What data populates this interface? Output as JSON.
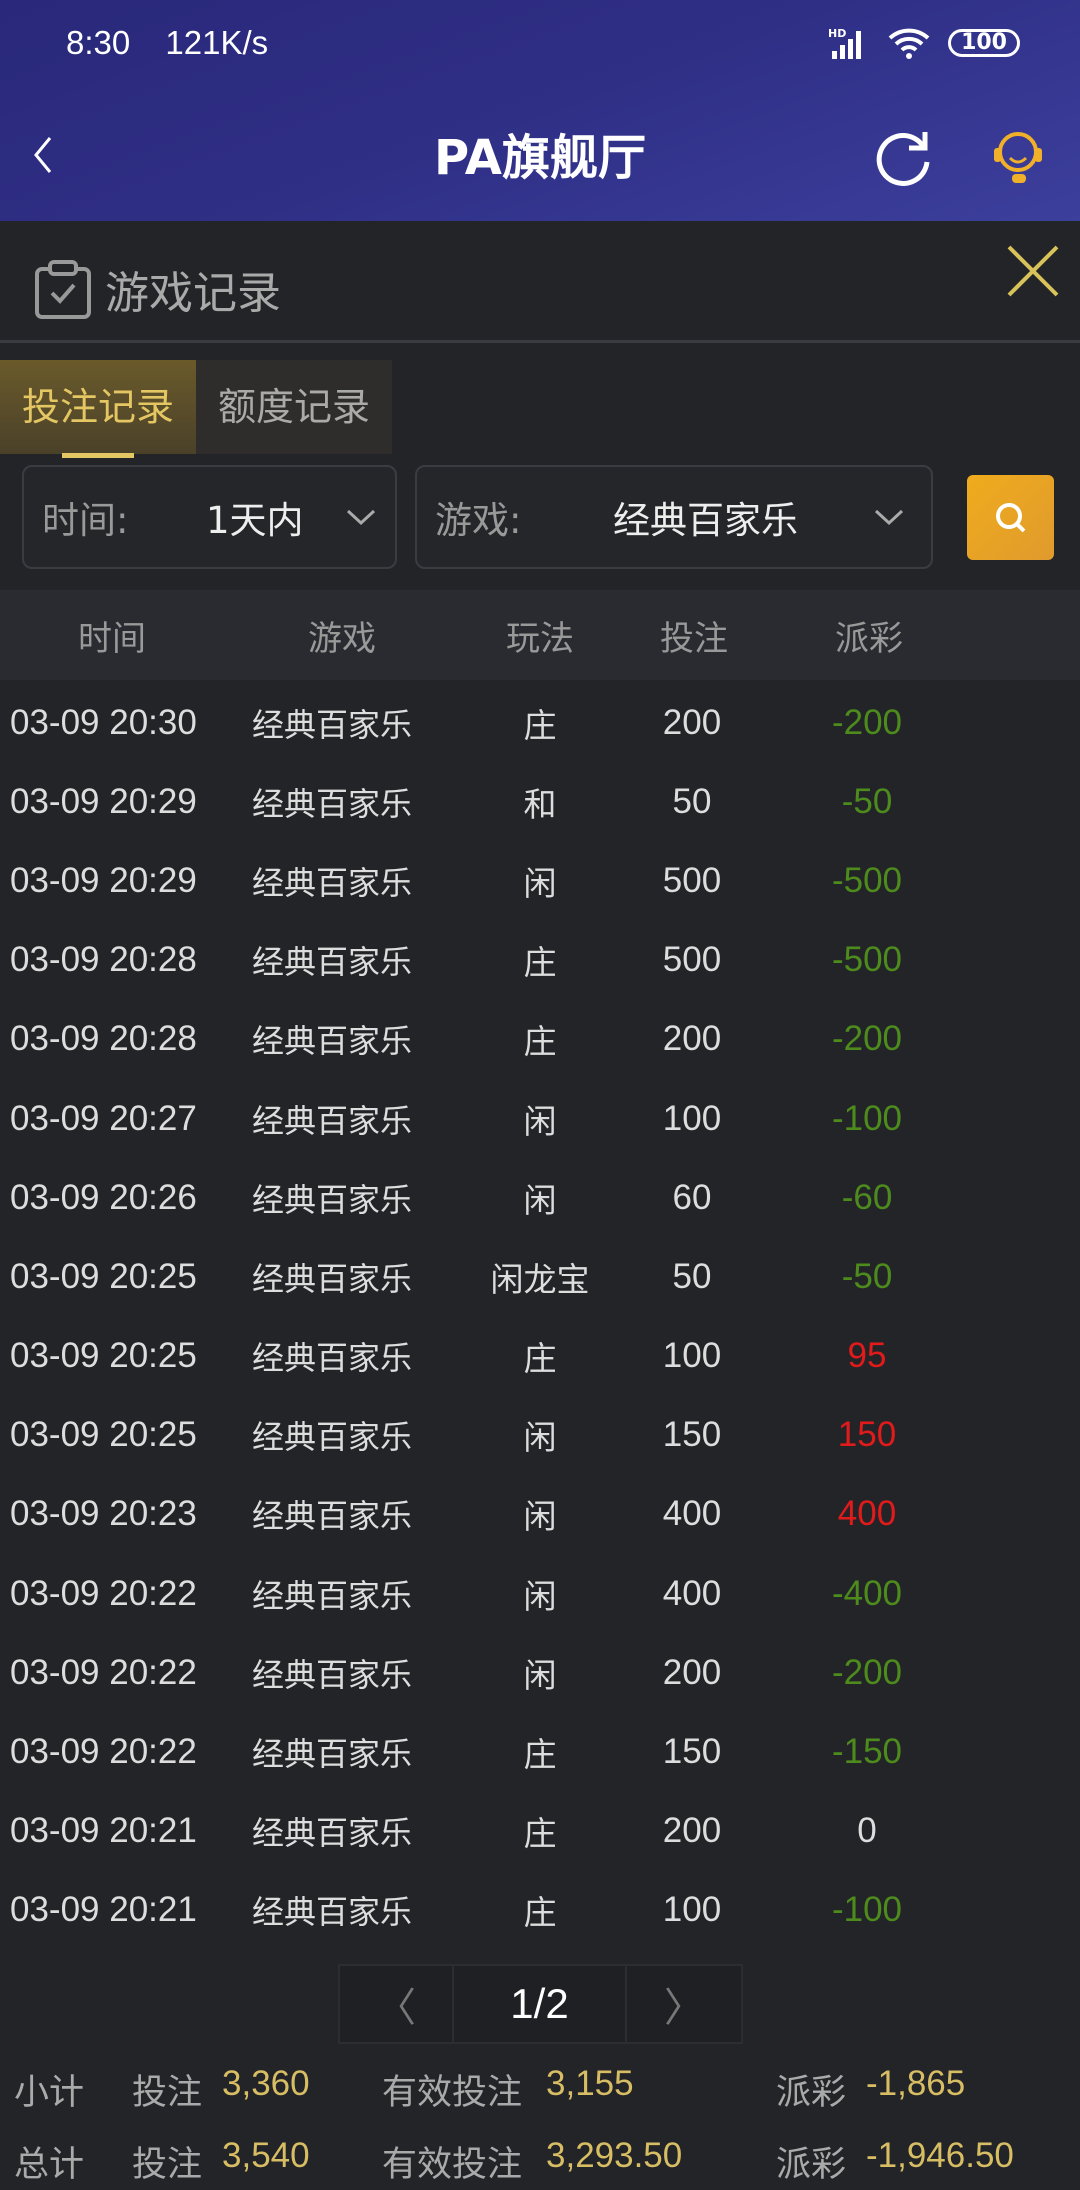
{
  "status_bar": {
    "time": "8:30",
    "speed": "121K/s",
    "battery": "100",
    "signal_label": "HD"
  },
  "nav": {
    "title": "PA旗舰厅"
  },
  "panel": {
    "title": "游戏记录"
  },
  "tabs": [
    {
      "label": "投注记录",
      "active": true
    },
    {
      "label": "额度记录",
      "active": false
    }
  ],
  "filters": {
    "time_label": "时间:",
    "time_value": "1天内",
    "game_label": "游戏:",
    "game_value": "经典百家乐"
  },
  "table": {
    "headers": [
      "时间",
      "游戏",
      "玩法",
      "投注",
      "派彩"
    ],
    "rows": [
      {
        "time": "03-09 20:30",
        "game": "经典百家乐",
        "play": "庄",
        "bet": "200",
        "payout": "-200"
      },
      {
        "time": "03-09 20:29",
        "game": "经典百家乐",
        "play": "和",
        "bet": "50",
        "payout": "-50"
      },
      {
        "time": "03-09 20:29",
        "game": "经典百家乐",
        "play": "闲",
        "bet": "500",
        "payout": "-500"
      },
      {
        "time": "03-09 20:28",
        "game": "经典百家乐",
        "play": "庄",
        "bet": "500",
        "payout": "-500"
      },
      {
        "time": "03-09 20:28",
        "game": "经典百家乐",
        "play": "庄",
        "bet": "200",
        "payout": "-200"
      },
      {
        "time": "03-09 20:27",
        "game": "经典百家乐",
        "play": "闲",
        "bet": "100",
        "payout": "-100"
      },
      {
        "time": "03-09 20:26",
        "game": "经典百家乐",
        "play": "闲",
        "bet": "60",
        "payout": "-60"
      },
      {
        "time": "03-09 20:25",
        "game": "经典百家乐",
        "play": "闲龙宝",
        "bet": "50",
        "payout": "-50"
      },
      {
        "time": "03-09 20:25",
        "game": "经典百家乐",
        "play": "庄",
        "bet": "100",
        "payout": "95"
      },
      {
        "time": "03-09 20:25",
        "game": "经典百家乐",
        "play": "闲",
        "bet": "150",
        "payout": "150"
      },
      {
        "time": "03-09 20:23",
        "game": "经典百家乐",
        "play": "闲",
        "bet": "400",
        "payout": "400"
      },
      {
        "time": "03-09 20:22",
        "game": "经典百家乐",
        "play": "闲",
        "bet": "400",
        "payout": "-400"
      },
      {
        "time": "03-09 20:22",
        "game": "经典百家乐",
        "play": "闲",
        "bet": "200",
        "payout": "-200"
      },
      {
        "time": "03-09 20:22",
        "game": "经典百家乐",
        "play": "庄",
        "bet": "150",
        "payout": "-150"
      },
      {
        "time": "03-09 20:21",
        "game": "经典百家乐",
        "play": "庄",
        "bet": "200",
        "payout": "0"
      },
      {
        "time": "03-09 20:21",
        "game": "经典百家乐",
        "play": "庄",
        "bet": "100",
        "payout": "-100"
      }
    ]
  },
  "pagination": {
    "current": "1/2"
  },
  "summary": {
    "subtotal": {
      "label": "小计",
      "bet_label": "投注",
      "bet": "3,360",
      "valid_label": "有效投注",
      "valid": "3,155",
      "payout_label": "派彩",
      "payout": "-1,865"
    },
    "total": {
      "label": "总计",
      "bet_label": "投注",
      "bet": "3,540",
      "valid_label": "有效投注",
      "valid": "3,293.50",
      "payout_label": "派彩",
      "payout": "-1,946.50"
    }
  },
  "colors": {
    "header": "#2f2f86",
    "accent": "#e4c663",
    "loss": "#4d8b1d",
    "win": "#e11b1b",
    "search": "#efac1c"
  }
}
